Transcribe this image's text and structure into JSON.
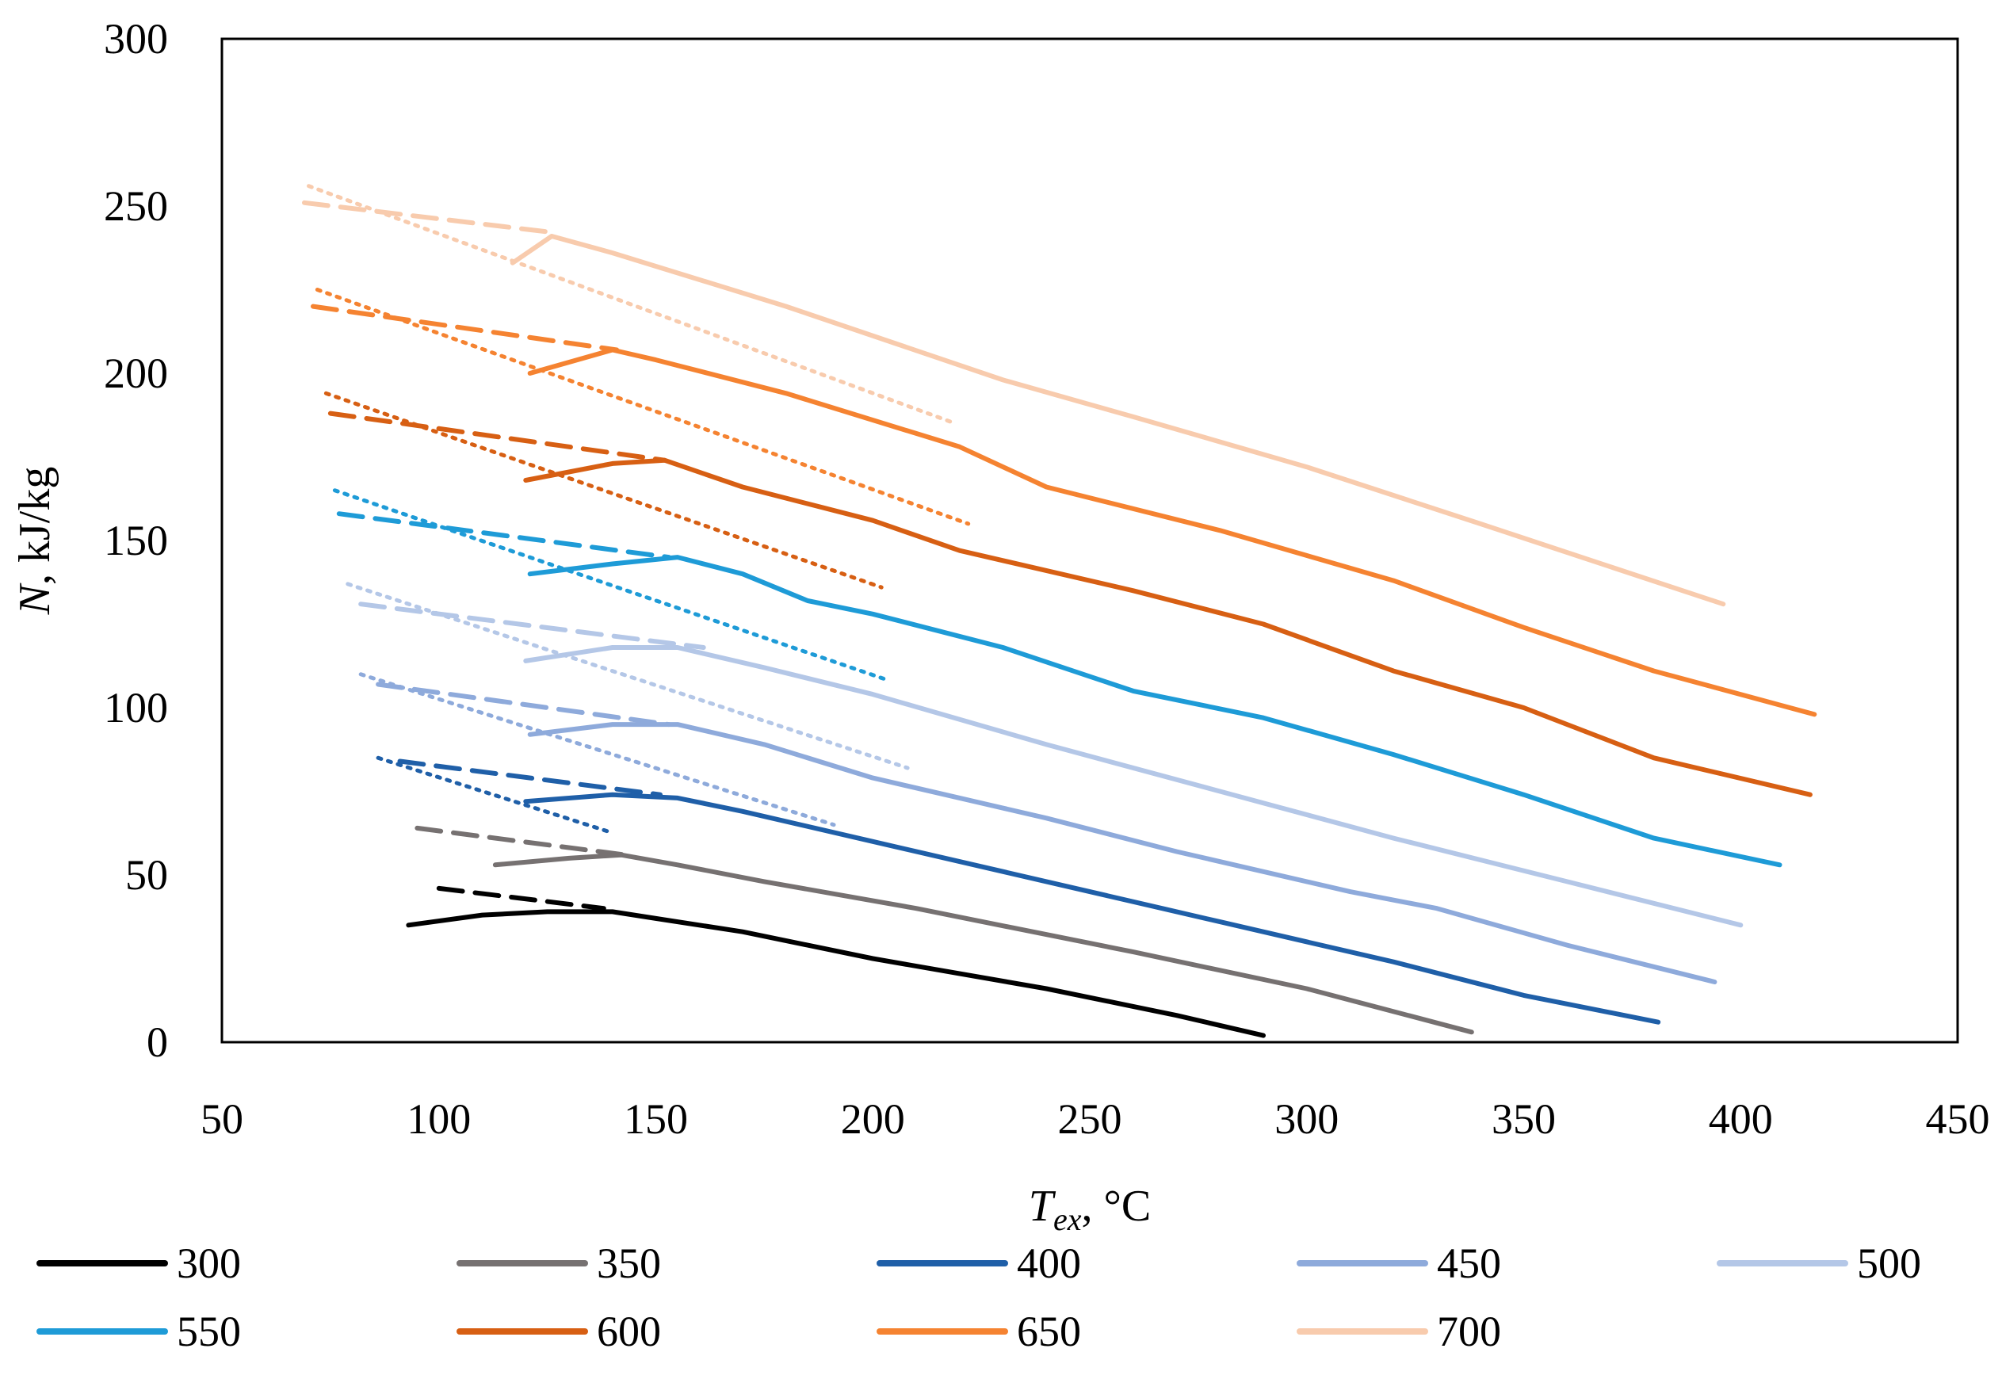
{
  "chart_data": {
    "type": "line",
    "title": "",
    "xlabel": {
      "base": "T",
      "sub": "ex",
      "unit": ", °C"
    },
    "ylabel": {
      "italic": "N",
      "unit": ", kJ/kg"
    },
    "xlim": [
      50,
      450
    ],
    "ylim": [
      0,
      300
    ],
    "xticks": [
      "50",
      "100",
      "150",
      "200",
      "250",
      "300",
      "350",
      "400",
      "450"
    ],
    "yticks": [
      "0",
      "50",
      "100",
      "150",
      "200",
      "250",
      "300"
    ],
    "grid": false,
    "legend_position": "bottom",
    "series": [
      {
        "name": "300",
        "color": "#000000",
        "solid": [
          [
            93,
            35
          ],
          [
            110,
            38
          ],
          [
            125,
            39
          ],
          [
            140,
            39
          ],
          [
            150,
            37
          ],
          [
            170,
            33
          ],
          [
            200,
            25
          ],
          [
            240,
            16
          ],
          [
            270,
            8
          ],
          [
            290,
            2
          ]
        ],
        "dashed": [
          [
            100,
            46
          ],
          [
            138,
            40
          ]
        ],
        "dotted": []
      },
      {
        "name": "350",
        "color": "#767171",
        "solid": [
          [
            113,
            53
          ],
          [
            130,
            55
          ],
          [
            142,
            56
          ],
          [
            155,
            53
          ],
          [
            175,
            48
          ],
          [
            210,
            40
          ],
          [
            260,
            27
          ],
          [
            300,
            16
          ],
          [
            338,
            3
          ]
        ],
        "dashed": [
          [
            95,
            64
          ],
          [
            143,
            56
          ]
        ],
        "dotted": []
      },
      {
        "name": "400",
        "color": "#1F5FA8",
        "solid": [
          [
            120,
            72
          ],
          [
            140,
            74
          ],
          [
            155,
            73
          ],
          [
            170,
            69
          ],
          [
            200,
            60
          ],
          [
            240,
            48
          ],
          [
            280,
            36
          ],
          [
            320,
            24
          ],
          [
            350,
            14
          ],
          [
            381,
            6
          ]
        ],
        "dashed": [
          [
            91,
            84
          ],
          [
            151,
            74
          ]
        ],
        "dotted": [
          [
            86,
            85
          ],
          [
            139,
            63
          ]
        ]
      },
      {
        "name": "450",
        "color": "#8EAADB",
        "solid": [
          [
            121,
            92
          ],
          [
            140,
            95
          ],
          [
            155,
            95
          ],
          [
            175,
            89
          ],
          [
            200,
            79
          ],
          [
            240,
            67
          ],
          [
            270,
            57
          ],
          [
            310,
            45
          ],
          [
            330,
            40
          ],
          [
            360,
            29
          ],
          [
            394,
            18
          ]
        ],
        "dashed": [
          [
            86,
            107
          ],
          [
            153,
            95
          ]
        ],
        "dotted": [
          [
            82,
            110
          ],
          [
            191,
            65
          ]
        ]
      },
      {
        "name": "500",
        "color": "#B4C7E7",
        "solid": [
          [
            120,
            114
          ],
          [
            140,
            118
          ],
          [
            155,
            118
          ],
          [
            175,
            112
          ],
          [
            200,
            104
          ],
          [
            240,
            89
          ],
          [
            280,
            75
          ],
          [
            320,
            61
          ],
          [
            360,
            48
          ],
          [
            400,
            35
          ]
        ],
        "dashed": [
          [
            82,
            131
          ],
          [
            161,
            118
          ]
        ],
        "dotted": [
          [
            79,
            137
          ],
          [
            208,
            82
          ]
        ]
      },
      {
        "name": "550",
        "color": "#1E9BD7",
        "solid": [
          [
            121,
            140
          ],
          [
            140,
            143
          ],
          [
            155,
            145
          ],
          [
            170,
            140
          ],
          [
            185,
            132
          ],
          [
            200,
            128
          ],
          [
            230,
            118
          ],
          [
            260,
            105
          ],
          [
            290,
            97
          ],
          [
            320,
            86
          ],
          [
            350,
            74
          ],
          [
            380,
            61
          ],
          [
            409,
            53
          ]
        ],
        "dashed": [
          [
            77,
            158
          ],
          [
            153,
            145
          ]
        ],
        "dotted": [
          [
            76,
            165
          ],
          [
            204,
            108
          ]
        ]
      },
      {
        "name": "600",
        "color": "#D75F13",
        "solid": [
          [
            120,
            168
          ],
          [
            140,
            173
          ],
          [
            152,
            174
          ],
          [
            170,
            166
          ],
          [
            200,
            156
          ],
          [
            220,
            147
          ],
          [
            260,
            135
          ],
          [
            290,
            125
          ],
          [
            320,
            111
          ],
          [
            350,
            100
          ],
          [
            380,
            85
          ],
          [
            416,
            74
          ]
        ],
        "dashed": [
          [
            75,
            188
          ],
          [
            152,
            174
          ]
        ],
        "dotted": [
          [
            74,
            194
          ],
          [
            202,
            136
          ]
        ]
      },
      {
        "name": "650",
        "color": "#F58331",
        "solid": [
          [
            121,
            200
          ],
          [
            140,
            207
          ],
          [
            150,
            204
          ],
          [
            180,
            194
          ],
          [
            220,
            178
          ],
          [
            240,
            166
          ],
          [
            280,
            153
          ],
          [
            320,
            138
          ],
          [
            350,
            124
          ],
          [
            380,
            111
          ],
          [
            417,
            98
          ]
        ],
        "dashed": [
          [
            71,
            220
          ],
          [
            141,
            207
          ]
        ],
        "dotted": [
          [
            72,
            225
          ],
          [
            222,
            155
          ]
        ]
      },
      {
        "name": "700",
        "color": "#F8CBAD",
        "solid": [
          [
            117,
            233
          ],
          [
            126,
            241
          ],
          [
            140,
            236
          ],
          [
            180,
            220
          ],
          [
            230,
            198
          ],
          [
            260,
            187
          ],
          [
            300,
            172
          ],
          [
            340,
            155
          ],
          [
            396,
            131
          ]
        ],
        "dashed": [
          [
            69,
            251
          ],
          [
            127,
            242
          ]
        ],
        "dotted": [
          [
            70,
            256
          ],
          [
            219,
            185
          ]
        ]
      }
    ]
  }
}
